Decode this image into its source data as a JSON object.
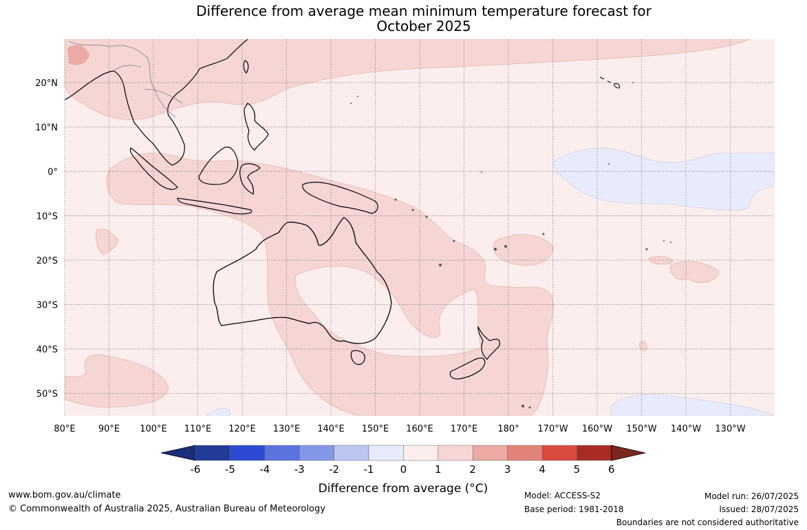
{
  "title_line1": "Difference from average mean minimum temperature forecast for",
  "title_line2": "October 2025",
  "lat_labels": [
    "20°N",
    "10°N",
    "0°",
    "10°S",
    "20°S",
    "30°S",
    "40°S",
    "50°S"
  ],
  "lon_labels": [
    "80°E",
    "90°E",
    "100°E",
    "110°E",
    "120°E",
    "130°E",
    "140°E",
    "150°E",
    "160°E",
    "170°E",
    "180°",
    "170°W",
    "160°W",
    "150°W",
    "140°W",
    "130°W"
  ],
  "colorbar": {
    "label": "Difference from average (°C)",
    "ticks": [
      "-6",
      "-5",
      "-4",
      "-3",
      "-2",
      "-1",
      "0",
      "1",
      "2",
      "3",
      "4",
      "5",
      "6"
    ],
    "colors": [
      "#213b96",
      "#2c49d4",
      "#5b74e0",
      "#8397e6",
      "#bcc6f2",
      "#e7ebfb",
      "#fbeeed",
      "#f5d6d4",
      "#ebaaa4",
      "#e2837a",
      "#da4a3e",
      "#a82b24"
    ],
    "low_extension_color": "#1b2c78",
    "high_extension_color": "#7a2720"
  },
  "colors": {
    "background_near_zero": "#fbeeed",
    "warm_1_2": "#f5d6d4",
    "warm_2_3": "#ebaaa4",
    "cool_minus1_0": "#e7ebfb",
    "coastline": "#000000",
    "grid": "#555555"
  },
  "footer": {
    "website": "www.bom.gov.au/climate",
    "copyright": "© Commonwealth of Australia 2025, Australian Bureau of Meteorology",
    "model": "Model: ACCESS-S2",
    "base_period": "Base period: 1981-2018",
    "model_run": "Model run: 26/07/2025",
    "issued": "Issued: 28/07/2025",
    "disclaimer": "Boundaries are not considered authoritative"
  }
}
